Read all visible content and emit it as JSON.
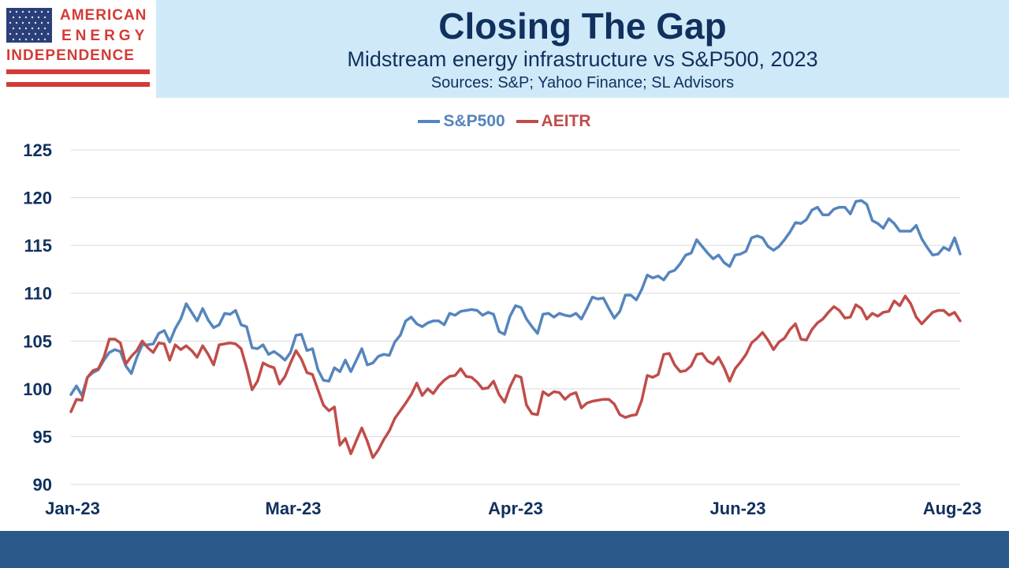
{
  "logo": {
    "line1": "AMERICAN",
    "line2": "ENERGY",
    "line3": "INDEPENDENCE"
  },
  "header": {
    "title": "Closing The Gap",
    "subtitle": "Midstream energy infrastructure vs S&P500, 2023",
    "sources": "Sources: S&P; Yahoo Finance; SL Advisors"
  },
  "colors": {
    "sp500": "#5585bd",
    "aeitr": "#c04d4a",
    "header_band": "#cfe9f8",
    "title_text": "#10305e",
    "footer_bar": "#2b5a8a"
  },
  "chart_data": {
    "type": "line",
    "title": "Closing The Gap",
    "subtitle": "Midstream energy infrastructure vs S&P500, 2023",
    "xlabel": "",
    "ylabel": "",
    "ylim": [
      90,
      125
    ],
    "yticks": [
      90,
      95,
      100,
      105,
      110,
      115,
      120,
      125
    ],
    "xtick_labels": [
      "Jan-23",
      "Mar-23",
      "Apr-23",
      "Jun-23",
      "Aug-23"
    ],
    "grid": "horizontal",
    "legend": "top-center",
    "series": [
      {
        "name": "S&P500",
        "color": "#5585bd",
        "values": [
          99.4,
          100.3,
          99.3,
          101.2,
          101.7,
          102.0,
          103.0,
          103.8,
          104.1,
          103.9,
          102.4,
          101.6,
          103.3,
          104.6,
          104.6,
          104.7,
          105.8,
          106.1,
          104.9,
          106.3,
          107.3,
          108.9,
          108.0,
          107.1,
          108.4,
          107.2,
          106.4,
          106.7,
          107.9,
          107.8,
          108.2,
          106.7,
          106.5,
          104.3,
          104.2,
          104.6,
          103.6,
          103.9,
          103.5,
          103.0,
          103.8,
          105.6,
          105.7,
          104.0,
          104.2,
          102.0,
          100.9,
          100.8,
          102.2,
          101.8,
          103.0,
          101.8,
          103.0,
          104.2,
          102.5,
          102.7,
          103.4,
          103.6,
          103.5,
          104.9,
          105.6,
          107.1,
          107.5,
          106.8,
          106.5,
          106.9,
          107.1,
          107.1,
          106.7,
          107.9,
          107.7,
          108.1,
          108.2,
          108.3,
          108.2,
          107.7,
          108.0,
          107.8,
          106.0,
          105.7,
          107.6,
          108.7,
          108.5,
          107.3,
          106.5,
          105.8,
          107.8,
          107.9,
          107.5,
          107.9,
          107.7,
          107.6,
          107.9,
          107.3,
          108.4,
          109.6,
          109.4,
          109.5,
          108.4,
          107.4,
          108.1,
          109.8,
          109.8,
          109.3,
          110.4,
          111.9,
          111.6,
          111.8,
          111.4,
          112.2,
          112.4,
          113.1,
          114.0,
          114.2,
          115.6,
          114.9,
          114.2,
          113.6,
          114.0,
          113.2,
          112.8,
          114.0,
          114.1,
          114.4,
          115.8,
          116.0,
          115.8,
          114.9,
          114.5,
          114.9,
          115.6,
          116.4,
          117.4,
          117.3,
          117.7,
          118.7,
          119.0,
          118.2,
          118.2,
          118.8,
          119.0,
          119.0,
          118.3,
          119.6,
          119.7,
          119.3,
          117.6,
          117.3,
          116.8,
          117.8,
          117.3,
          116.5,
          116.5,
          116.5,
          117.1,
          115.7,
          114.8,
          114.0,
          114.1,
          114.8,
          114.5,
          115.8,
          114.1
        ]
      },
      {
        "name": "AEITR",
        "color": "#c04d4a",
        "values": [
          97.6,
          98.9,
          98.8,
          101.2,
          101.9,
          102.1,
          103.3,
          105.2,
          105.2,
          104.8,
          102.6,
          103.4,
          104.0,
          105.0,
          104.3,
          103.8,
          104.8,
          104.7,
          103.0,
          104.6,
          104.1,
          104.5,
          104.0,
          103.3,
          104.5,
          103.6,
          102.5,
          104.6,
          104.7,
          104.8,
          104.7,
          104.2,
          102.2,
          99.9,
          100.8,
          102.7,
          102.4,
          102.2,
          100.5,
          101.3,
          102.7,
          104.0,
          103.1,
          101.7,
          101.5,
          99.9,
          98.3,
          97.7,
          98.1,
          94.1,
          94.8,
          93.2,
          94.6,
          95.9,
          94.5,
          92.8,
          93.6,
          94.7,
          95.6,
          96.9,
          97.7,
          98.5,
          99.4,
          100.6,
          99.3,
          100.0,
          99.5,
          100.3,
          100.9,
          101.3,
          101.4,
          102.1,
          101.3,
          101.2,
          100.7,
          100.0,
          100.1,
          100.8,
          99.4,
          98.6,
          100.2,
          101.4,
          101.2,
          98.3,
          97.4,
          97.3,
          99.7,
          99.3,
          99.7,
          99.6,
          98.9,
          99.4,
          99.6,
          98.0,
          98.5,
          98.7,
          98.8,
          98.9,
          98.9,
          98.4,
          97.3,
          97.0,
          97.2,
          97.3,
          98.8,
          101.4,
          101.2,
          101.5,
          103.6,
          103.7,
          102.5,
          101.8,
          101.9,
          102.4,
          103.6,
          103.7,
          102.9,
          102.6,
          103.3,
          102.2,
          100.8,
          102.1,
          102.8,
          103.6,
          104.8,
          105.3,
          105.9,
          105.1,
          104.1,
          104.9,
          105.3,
          106.2,
          106.8,
          105.2,
          105.1,
          106.2,
          106.9,
          107.3,
          108.0,
          108.6,
          108.2,
          107.4,
          107.5,
          108.8,
          108.4,
          107.3,
          107.9,
          107.6,
          108.0,
          108.1,
          109.2,
          108.7,
          109.7,
          108.9,
          107.5,
          106.8,
          107.4,
          108.0,
          108.2,
          108.2,
          107.7,
          108.0,
          107.1
        ]
      }
    ]
  }
}
